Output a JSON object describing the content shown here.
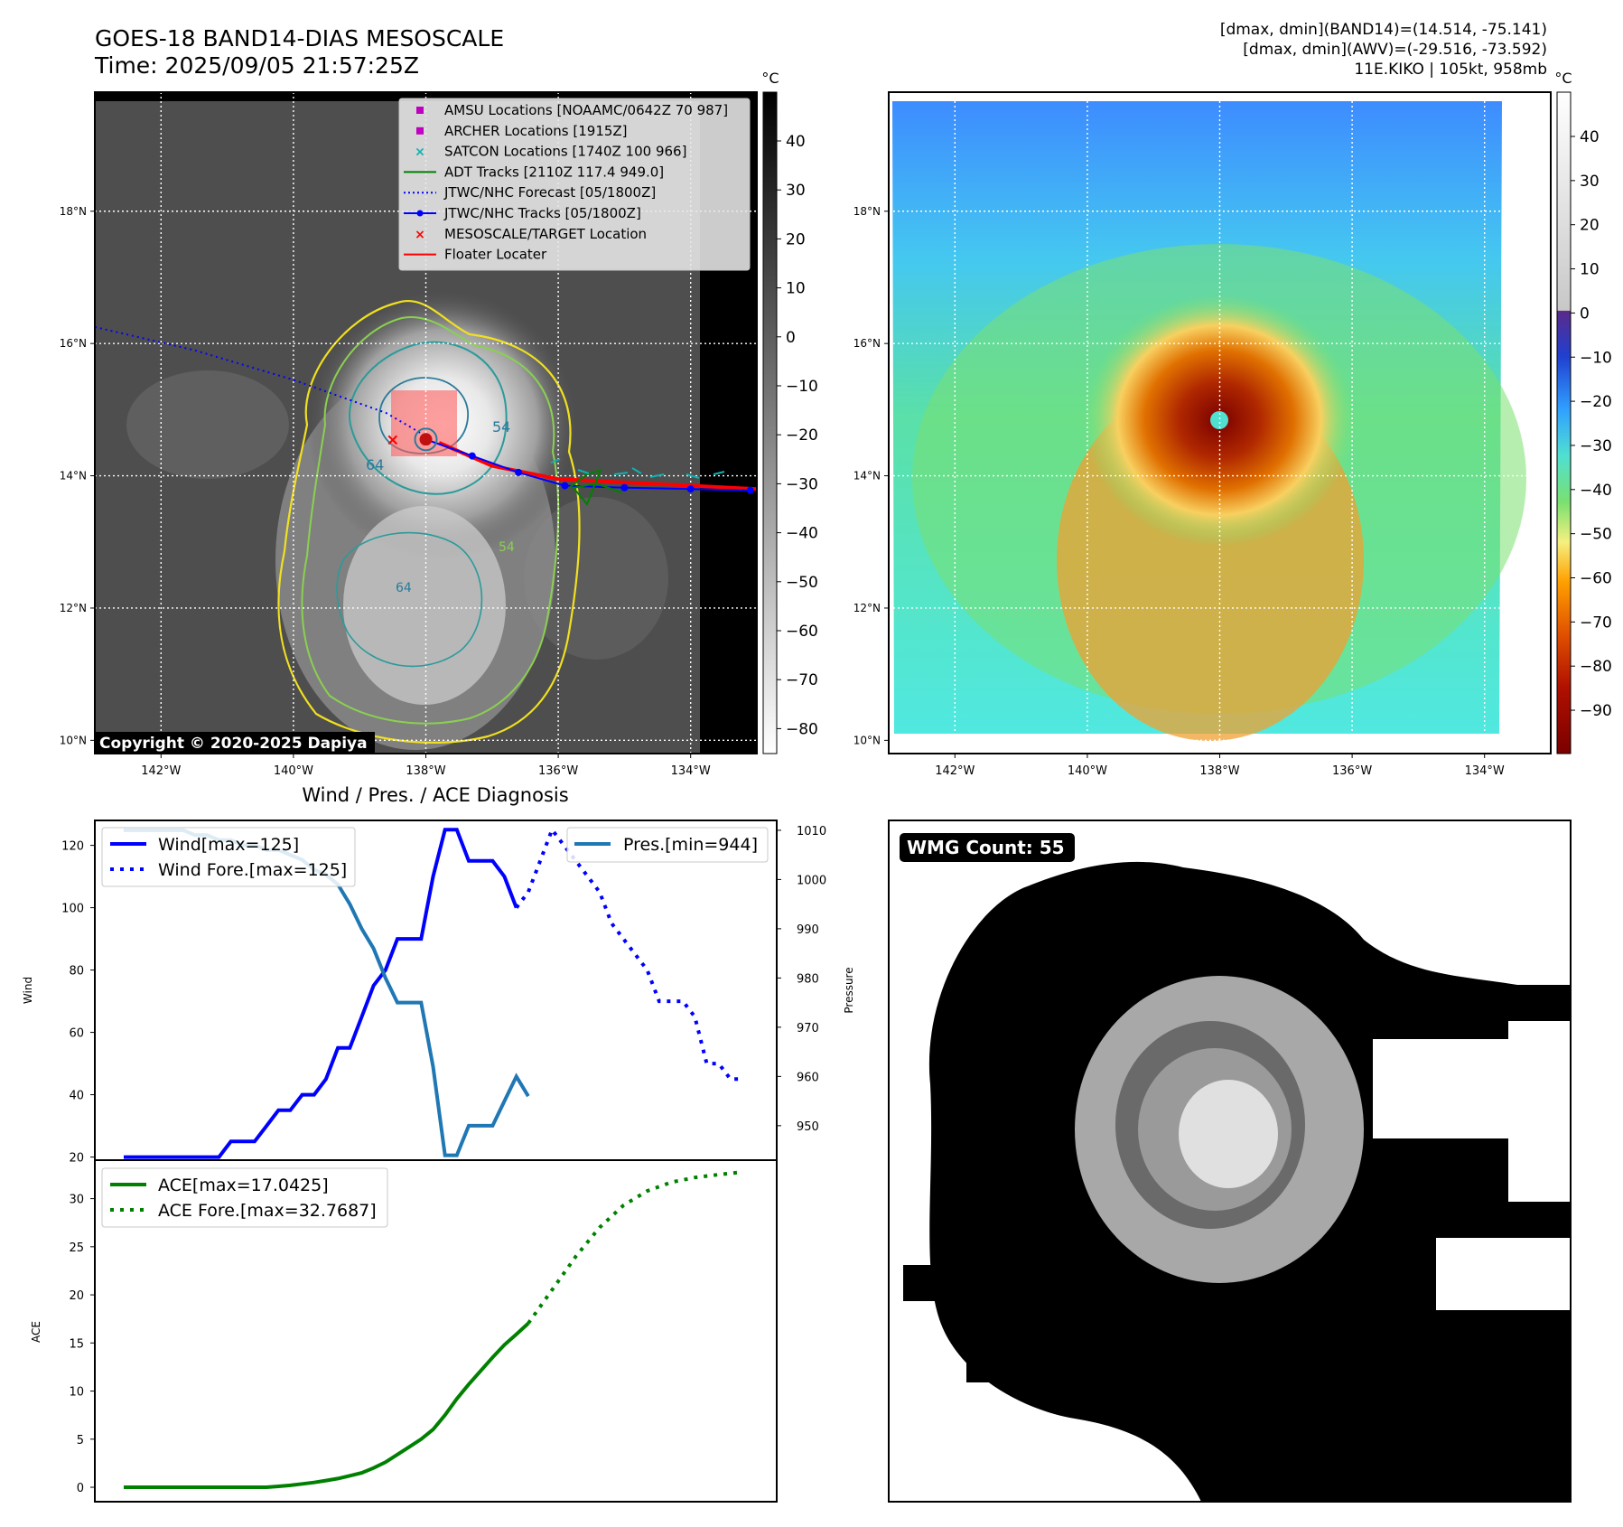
{
  "header": {
    "title_line1": "GOES-18 BAND14-DIAS MESOSCALE",
    "title_line2": "Time: 2025/09/05 21:57:25Z",
    "stats_line1": "[dmax, dmin](BAND14)=(14.514, -75.141)",
    "stats_line2": "[dmax, dmin](AWV)=(-29.516, -73.592)",
    "stats_line3": "11E.KIKO | 105kt, 958mb"
  },
  "map": {
    "lat_labels": [
      "18°N",
      "16°N",
      "14°N",
      "12°N",
      "10°N"
    ],
    "lon_labels": [
      "142°W",
      "140°W",
      "138°W",
      "136°W",
      "134°W"
    ],
    "lon_ticks": [
      -142,
      -140,
      -138,
      -136,
      -134
    ],
    "lat_ticks": [
      18,
      16,
      14,
      12,
      10
    ],
    "lon_range": [
      -143,
      -133
    ],
    "lat_range": [
      9.8,
      19.8
    ],
    "storm_center": {
      "lon": -138.0,
      "lat": 14.55
    },
    "target_location": {
      "lon": -138.5,
      "lat": 14.55
    },
    "copyright": "Copyright © 2020-2025 Dapiya",
    "contour_labels": [
      "54",
      "64",
      "64",
      "54"
    ],
    "forecast_track": [
      [
        -143.0,
        16.25
      ],
      [
        -141.5,
        15.9
      ],
      [
        -140.0,
        15.45
      ],
      [
        -138.6,
        14.95
      ],
      [
        -138.0,
        14.6
      ]
    ],
    "best_track": [
      [
        -138.0,
        14.55
      ],
      [
        -137.3,
        14.3
      ],
      [
        -136.6,
        14.05
      ],
      [
        -135.9,
        13.85
      ],
      [
        -135.0,
        13.82
      ],
      [
        -134.0,
        13.8
      ],
      [
        -133.1,
        13.78
      ]
    ],
    "floater_track": [
      [
        -137.8,
        14.5
      ],
      [
        -137.0,
        14.15
      ],
      [
        -136.0,
        13.95
      ],
      [
        -135.0,
        13.9
      ],
      [
        -134.0,
        13.85
      ],
      [
        -133.0,
        13.8
      ]
    ],
    "legend": [
      {
        "label": "AMSU Locations [NOAAMC/0642Z 70 987]",
        "color": "#c000c0",
        "symbol": "square"
      },
      {
        "label": "ARCHER Locations [1915Z]",
        "color": "#c000c0",
        "symbol": "square"
      },
      {
        "label": "SATCON Locations [1740Z 100 966]",
        "color": "#10b0b0",
        "symbol": "x"
      },
      {
        "label": "ADT Tracks [2110Z 117.4 949.0]",
        "color": "#008000",
        "symbol": "line"
      },
      {
        "label": "JTWC/NHC Forecast [05/1800Z]",
        "color": "#0000ff",
        "symbol": "dotted"
      },
      {
        "label": "JTWC/NHC Tracks [05/1800Z]",
        "color": "#0000ff",
        "symbol": "line-dot"
      },
      {
        "label": "MESOSCALE/TARGET Location",
        "color": "#ff0000",
        "symbol": "x"
      },
      {
        "label": "Floater Locater",
        "color": "#ff0000",
        "symbol": "line"
      }
    ]
  },
  "colorbar_gray": {
    "unit": "°C",
    "ticks": [
      "40",
      "30",
      "20",
      "10",
      "0",
      "−10",
      "−20",
      "−30",
      "−40",
      "−50",
      "−60",
      "−70",
      "−80"
    ]
  },
  "colorbar_color": {
    "unit": "°C",
    "ticks": [
      "40",
      "30",
      "20",
      "10",
      "0",
      "−10",
      "−20",
      "−30",
      "−40",
      "−50",
      "−60",
      "−70",
      "−80",
      "−90"
    ],
    "colors": {
      "c1": "#0033cc",
      "c2": "#3380ff",
      "c3": "#4dd9ff",
      "c4": "#66e06a",
      "c5": "#f5f080",
      "c6": "#ff9a00",
      "c7": "#d24300",
      "c8": "#8b0000"
    }
  },
  "wmg": {
    "label": "WMG Count: 55"
  },
  "chart_data": [
    {
      "type": "line",
      "title": "Wind / Pres. / ACE Diagnosis",
      "ylabel": "Wind",
      "ylabel_right": "Pressure",
      "ylim": [
        19,
        128
      ],
      "ylim_right": [
        943,
        1012
      ],
      "x_range": [
        0,
        52
      ],
      "yticks": [
        120,
        100,
        80,
        60,
        40,
        20
      ],
      "yticks_right": [
        1010,
        1000,
        990,
        980,
        970,
        960,
        950
      ],
      "series": [
        {
          "name": "Wind[max=125]",
          "color": "#0000ff",
          "style": "solid",
          "axis": "left",
          "x": [
            0,
            1,
            2,
            3,
            4,
            5,
            6,
            7,
            8,
            9,
            10,
            11,
            12,
            13,
            14,
            15,
            16,
            17,
            18,
            19,
            20,
            21,
            22,
            23,
            24,
            25,
            26,
            27,
            28,
            29,
            30,
            31,
            32,
            33
          ],
          "values": [
            20,
            20,
            20,
            20,
            20,
            20,
            20,
            20,
            20,
            25,
            25,
            25,
            30,
            35,
            35,
            40,
            40,
            45,
            55,
            55,
            65,
            75,
            80,
            90,
            90,
            90,
            110,
            125,
            125,
            115,
            115,
            115,
            110,
            100
          ]
        },
        {
          "name": "Wind Fore.[max=125]",
          "color": "#0000ff",
          "style": "dotted",
          "axis": "left",
          "x": [
            33,
            34,
            35,
            36,
            37,
            38,
            39,
            40,
            41,
            42,
            43,
            44,
            45,
            46,
            47,
            48,
            49,
            50,
            51,
            52
          ],
          "values": [
            100,
            105,
            115,
            125,
            120,
            115,
            110,
            105,
            95,
            90,
            85,
            80,
            70,
            70,
            70,
            65,
            50,
            50,
            45,
            45
          ]
        },
        {
          "name": "Pres.[min=944]",
          "color": "#1f77b4",
          "style": "solid",
          "axis": "right",
          "x": [
            0,
            1,
            2,
            3,
            4,
            5,
            6,
            7,
            8,
            9,
            10,
            11,
            12,
            13,
            14,
            15,
            16,
            17,
            18,
            19,
            20,
            21,
            22,
            23,
            24,
            25,
            26,
            27,
            28,
            29,
            30,
            31,
            32,
            33,
            34
          ],
          "values": [
            1010,
            1010,
            1010,
            1010,
            1010,
            1010,
            1009,
            1009,
            1008,
            1008,
            1007,
            1007,
            1006,
            1006,
            1005,
            1004,
            1002,
            1001,
            999,
            995,
            990,
            986,
            980,
            975,
            975,
            975,
            962,
            944,
            944,
            950,
            950,
            950,
            955,
            960,
            956
          ]
        }
      ]
    },
    {
      "type": "line",
      "ylabel": "ACE",
      "ylim": [
        -1.5,
        34
      ],
      "x_range": [
        0,
        52
      ],
      "yticks": [
        30,
        25,
        20,
        15,
        10,
        5,
        0
      ],
      "series": [
        {
          "name": "ACE[max=17.0425]",
          "color": "#008000",
          "style": "solid",
          "x": [
            0,
            2,
            4,
            6,
            8,
            10,
            12,
            13,
            14,
            15,
            16,
            17,
            18,
            19,
            20,
            21,
            22,
            23,
            24,
            25,
            26,
            27,
            28,
            29,
            30,
            31,
            32,
            33,
            34
          ],
          "values": [
            0,
            0,
            0,
            0,
            0,
            0,
            0,
            0.1,
            0.2,
            0.35,
            0.5,
            0.7,
            0.9,
            1.2,
            1.5,
            2.0,
            2.6,
            3.4,
            4.2,
            5.0,
            6.0,
            7.5,
            9.2,
            10.7,
            12.1,
            13.5,
            14.8,
            15.9,
            17.04
          ]
        },
        {
          "name": "ACE Fore.[max=32.7687]",
          "color": "#008000",
          "style": "dotted",
          "x": [
            34,
            36,
            38,
            40,
            42,
            44,
            46,
            48,
            50,
            52
          ],
          "values": [
            17.04,
            20.5,
            24.0,
            27.0,
            29.3,
            30.8,
            31.7,
            32.2,
            32.5,
            32.77
          ]
        }
      ]
    }
  ]
}
